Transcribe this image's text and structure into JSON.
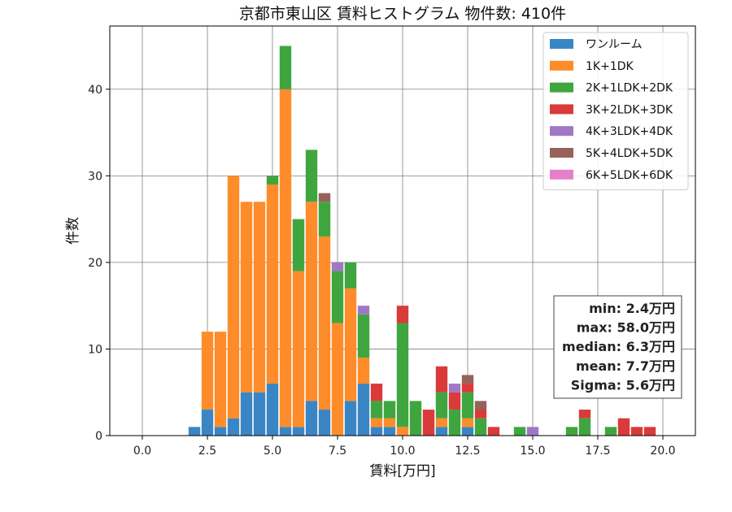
{
  "chart_data": {
    "type": "bar",
    "stacked": true,
    "title": "京都市東山区 賃料ヒストグラム 物件数: 410件",
    "xlabel": "賃料[万円]",
    "ylabel": "件数",
    "xlim": [
      -1.25,
      21.25
    ],
    "ylim": [
      0,
      47.3
    ],
    "bin_width": 0.5,
    "x_ticks": [
      "0.0",
      "2.5",
      "5.0",
      "7.5",
      "10.0",
      "12.5",
      "15.0",
      "17.5",
      "20.0"
    ],
    "y_ticks": [
      "0",
      "10",
      "20",
      "30",
      "40"
    ],
    "grid": true,
    "legend_position": "top-right",
    "series": [
      {
        "name": "ワンルーム",
        "color": "#3a86c4",
        "points": [
          [
            2.0,
            1
          ],
          [
            2.5,
            3
          ],
          [
            3.0,
            1
          ],
          [
            3.5,
            2
          ],
          [
            4.0,
            5
          ],
          [
            4.5,
            5
          ],
          [
            5.0,
            6
          ],
          [
            5.5,
            1
          ],
          [
            6.0,
            1
          ],
          [
            6.5,
            4
          ],
          [
            7.0,
            3
          ],
          [
            8.0,
            4
          ],
          [
            8.5,
            6
          ],
          [
            9.0,
            1
          ],
          [
            9.5,
            1
          ],
          [
            11.5,
            1
          ],
          [
            12.5,
            1
          ]
        ]
      },
      {
        "name": "1K+1DK",
        "color": "#ff8c2a",
        "points": [
          [
            2.5,
            9
          ],
          [
            3.0,
            11
          ],
          [
            3.5,
            28
          ],
          [
            4.0,
            22
          ],
          [
            4.5,
            22
          ],
          [
            5.0,
            23
          ],
          [
            5.5,
            39
          ],
          [
            6.0,
            18
          ],
          [
            6.5,
            23
          ],
          [
            7.0,
            20
          ],
          [
            7.5,
            13
          ],
          [
            8.0,
            13
          ],
          [
            8.5,
            3
          ],
          [
            9.0,
            1
          ],
          [
            9.5,
            1
          ],
          [
            10.0,
            1
          ],
          [
            11.5,
            1
          ],
          [
            12.5,
            1
          ]
        ]
      },
      {
        "name": "2K+1LDK+2DK",
        "color": "#3fa63f",
        "points": [
          [
            5.0,
            1
          ],
          [
            5.5,
            5
          ],
          [
            6.0,
            6
          ],
          [
            6.5,
            6
          ],
          [
            7.0,
            4
          ],
          [
            7.5,
            6
          ],
          [
            8.0,
            3
          ],
          [
            8.5,
            5
          ],
          [
            9.0,
            2
          ],
          [
            9.5,
            2
          ],
          [
            10.0,
            12
          ],
          [
            10.5,
            4
          ],
          [
            11.5,
            3
          ],
          [
            12.0,
            3
          ],
          [
            12.5,
            3
          ],
          [
            13.0,
            2
          ],
          [
            14.5,
            1
          ],
          [
            16.5,
            1
          ],
          [
            17.0,
            2
          ],
          [
            18.0,
            1
          ]
        ]
      },
      {
        "name": "3K+2LDK+3DK",
        "color": "#d93a3a",
        "points": [
          [
            9.0,
            2
          ],
          [
            10.0,
            2
          ],
          [
            11.0,
            3
          ],
          [
            11.5,
            3
          ],
          [
            12.0,
            2
          ],
          [
            12.5,
            1
          ],
          [
            13.0,
            1
          ],
          [
            13.5,
            1
          ],
          [
            17.0,
            1
          ],
          [
            18.5,
            2
          ],
          [
            19.0,
            1
          ],
          [
            19.5,
            1
          ]
        ]
      },
      {
        "name": "4K+3LDK+4DK",
        "color": "#a077c6",
        "points": [
          [
            7.5,
            1
          ],
          [
            8.5,
            1
          ],
          [
            12.0,
            1
          ],
          [
            15.0,
            1
          ]
        ]
      },
      {
        "name": "5K+4LDK+5DK",
        "color": "#96625a",
        "points": [
          [
            7.0,
            1
          ],
          [
            12.5,
            1
          ],
          [
            13.0,
            1
          ]
        ]
      },
      {
        "name": "6K+5LDK+6DK",
        "color": "#e580c8",
        "points": []
      }
    ],
    "stats": [
      "min: 2.4万円",
      "max: 58.0万円",
      "median: 6.3万円",
      "mean: 7.7万円",
      "Sigma: 5.6万円"
    ]
  }
}
